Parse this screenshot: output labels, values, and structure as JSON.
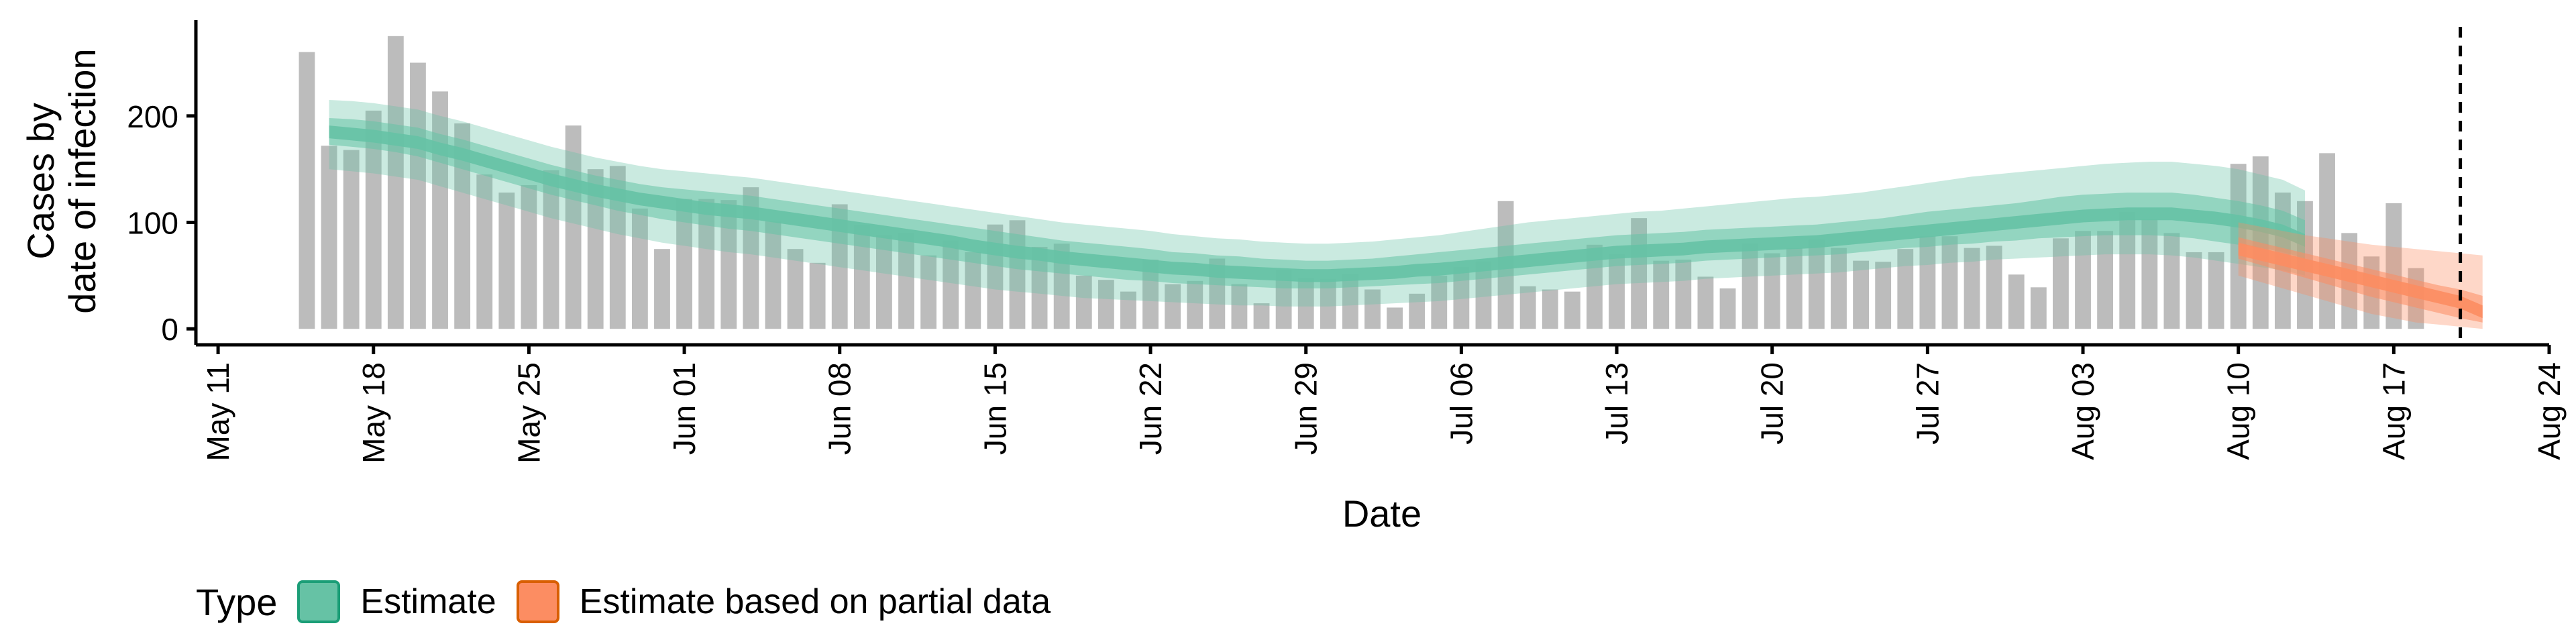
{
  "chart_data": {
    "type": "bar",
    "xlabel": "Date",
    "ylabel": "Cases by\ndate of infection",
    "ylim": [
      0,
      290
    ],
    "y_ticks": [
      0,
      100,
      200
    ],
    "x_ticks": [
      "May 11",
      "May 18",
      "May 25",
      "Jun 01",
      "Jun 08",
      "Jun 15",
      "Jun 22",
      "Jun 29",
      "Jul 06",
      "Jul 13",
      "Jul 20",
      "Jul 27",
      "Aug 03",
      "Aug 10",
      "Aug 17",
      "Aug 24"
    ],
    "x_range": [
      "2020-05-10",
      "2020-08-24"
    ],
    "reference_line": "2020-08-20",
    "grid": false,
    "legend_position": "bottom-left",
    "bars": {
      "start_date": "2020-05-15",
      "values": [
        260,
        172,
        168,
        205,
        275,
        250,
        223,
        193,
        145,
        128,
        135,
        149,
        191,
        150,
        153,
        113,
        75,
        122,
        122,
        121,
        133,
        101,
        75,
        62,
        117,
        98,
        88,
        90,
        69,
        83,
        72,
        98,
        102,
        77,
        80,
        50,
        46,
        35,
        65,
        42,
        45,
        66,
        42,
        24,
        55,
        48,
        47,
        52,
        37,
        20,
        33,
        50,
        58,
        63,
        120,
        40,
        37,
        35,
        79,
        70,
        104,
        64,
        65,
        49,
        38,
        80,
        71,
        76,
        84,
        76,
        64,
        63,
        75,
        87,
        87,
        76,
        78,
        51,
        39,
        85,
        92,
        92,
        110,
        103,
        90,
        72,
        72,
        155,
        162,
        128,
        120,
        165,
        90,
        68,
        118,
        57
      ],
      "color": "#bcbcbc"
    },
    "series": [
      {
        "name": "Estimate",
        "start_date": "2020-05-16",
        "color": "#66c2a5",
        "border": "#1b9e77",
        "median": [
          185,
          183,
          181,
          178,
          175,
          169,
          164,
          158,
          152,
          146,
          140,
          135,
          130,
          126,
          122,
          119,
          116,
          113,
          111,
          109,
          106,
          103,
          100,
          97,
          94,
          91,
          88,
          85,
          82,
          78,
          75,
          72,
          70,
          67,
          65,
          63,
          61,
          59,
          57,
          56,
          54,
          53,
          52,
          51,
          50,
          50,
          51,
          52,
          53,
          55,
          56,
          58,
          60,
          62,
          64,
          66,
          68,
          70,
          72,
          73,
          74,
          75,
          77,
          78,
          79,
          80,
          81,
          82,
          84,
          86,
          88,
          90,
          92,
          94,
          96,
          98,
          100,
          102,
          104,
          106,
          107,
          108,
          108,
          108,
          106,
          104,
          101,
          97,
          92,
          83
        ],
        "inner_low": [
          173,
          171,
          169,
          166,
          162,
          156,
          150,
          144,
          138,
          132,
          126,
          121,
          116,
          111,
          107,
          103,
          100,
          97,
          94,
          92,
          89,
          86,
          83,
          80,
          77,
          74,
          71,
          68,
          65,
          62,
          59,
          56,
          54,
          52,
          50,
          48,
          46,
          45,
          43,
          42,
          41,
          40,
          39,
          38,
          38,
          38,
          39,
          40,
          41,
          42,
          43,
          45,
          47,
          49,
          51,
          53,
          55,
          57,
          59,
          60,
          61,
          62,
          64,
          65,
          66,
          67,
          68,
          69,
          70,
          72,
          74,
          76,
          77,
          79,
          80,
          82,
          83,
          85,
          86,
          87,
          88,
          88,
          88,
          87,
          85,
          82,
          79,
          76,
          72,
          66
        ],
        "inner_high": [
          198,
          197,
          195,
          192,
          189,
          183,
          178,
          172,
          166,
          160,
          154,
          149,
          144,
          140,
          136,
          133,
          131,
          129,
          127,
          125,
          122,
          119,
          116,
          113,
          110,
          107,
          104,
          101,
          98,
          95,
          92,
          89,
          86,
          83,
          81,
          79,
          77,
          75,
          72,
          71,
          69,
          68,
          66,
          65,
          64,
          64,
          65,
          66,
          68,
          70,
          72,
          74,
          76,
          78,
          80,
          82,
          84,
          86,
          88,
          89,
          90,
          91,
          93,
          94,
          95,
          96,
          97,
          98,
          100,
          102,
          104,
          107,
          110,
          112,
          114,
          116,
          118,
          121,
          124,
          126,
          127,
          128,
          128,
          128,
          126,
          123,
          120,
          116,
          111,
          102
        ],
        "outer_low": [
          150,
          148,
          146,
          143,
          140,
          134,
          128,
          122,
          116,
          110,
          104,
          99,
          94,
          89,
          85,
          81,
          78,
          75,
          72,
          70,
          67,
          64,
          61,
          58,
          55,
          52,
          49,
          46,
          43,
          40,
          37,
          35,
          33,
          31,
          29,
          28,
          27,
          26,
          25,
          24,
          23,
          22,
          22,
          21,
          21,
          21,
          22,
          23,
          24,
          25,
          26,
          28,
          30,
          32,
          34,
          36,
          38,
          40,
          42,
          43,
          44,
          45,
          47,
          48,
          49,
          50,
          51,
          52,
          53,
          55,
          57,
          59,
          60,
          62,
          63,
          65,
          66,
          67,
          68,
          69,
          70,
          70,
          70,
          69,
          67,
          64,
          61,
          58,
          55,
          50
        ],
        "outer_high": [
          215,
          214,
          212,
          209,
          206,
          200,
          195,
          189,
          183,
          177,
          171,
          166,
          161,
          157,
          153,
          150,
          148,
          146,
          144,
          142,
          139,
          136,
          133,
          130,
          127,
          124,
          121,
          118,
          115,
          112,
          109,
          106,
          103,
          100,
          98,
          96,
          94,
          92,
          89,
          87,
          85,
          84,
          82,
          81,
          80,
          80,
          81,
          82,
          84,
          86,
          88,
          91,
          94,
          97,
          100,
          102,
          104,
          106,
          108,
          110,
          111,
          113,
          115,
          117,
          119,
          121,
          123,
          124,
          126,
          128,
          131,
          134,
          137,
          140,
          143,
          145,
          147,
          149,
          151,
          153,
          155,
          156,
          157,
          157,
          155,
          153,
          150,
          145,
          140,
          130
        ]
      },
      {
        "name": "Estimate based on partial data",
        "start_date": "2020-08-10",
        "color": "#fc8d62",
        "border": "#d95f02",
        "median": [
          75,
          70,
          65,
          60,
          55,
          50,
          45,
          40,
          35,
          30,
          25,
          16
        ],
        "inner_low": [
          66,
          60,
          54,
          48,
          42,
          36,
          30,
          25,
          20,
          15,
          10,
          6
        ],
        "inner_high": [
          86,
          81,
          76,
          71,
          66,
          61,
          56,
          51,
          46,
          41,
          37,
          31
        ],
        "outer_low": [
          50,
          44,
          38,
          32,
          26,
          20,
          14,
          10,
          6,
          4,
          2,
          0
        ],
        "outer_high": [
          100,
          96,
          92,
          88,
          85,
          82,
          79,
          77,
          75,
          73,
          71,
          69
        ]
      }
    ]
  },
  "legend": {
    "title": "Type",
    "items": [
      {
        "label": "Estimate",
        "fill": "#66c2a5",
        "border": "#1b9e77"
      },
      {
        "label": "Estimate based on partial data",
        "fill": "#fc8d62",
        "border": "#d95f02"
      }
    ]
  }
}
